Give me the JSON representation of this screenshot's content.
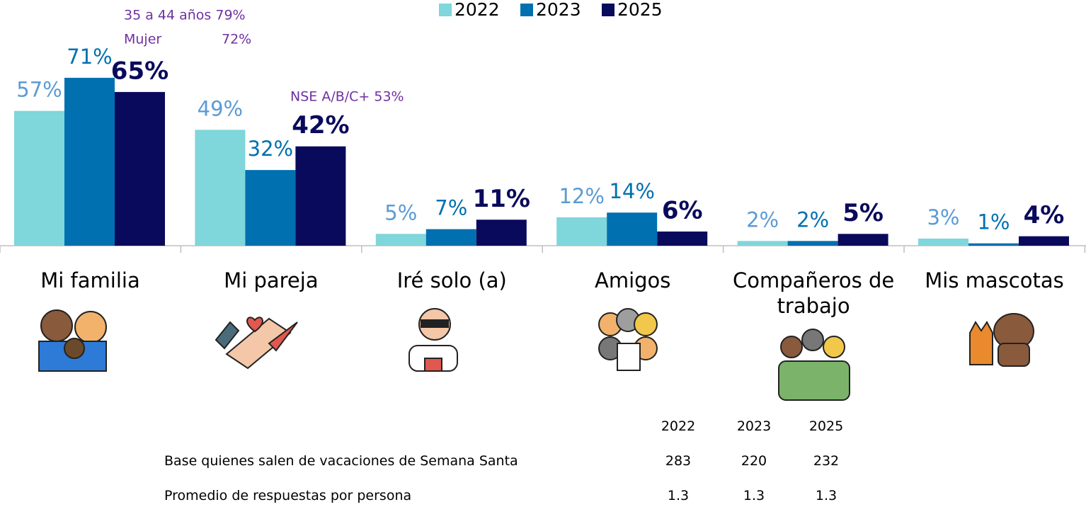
{
  "chart_data": {
    "type": "bar",
    "categories": [
      "Mi familia",
      "Mi pareja",
      "Iré solo (a)",
      "Amigos",
      "Compañeros de trabajo",
      "Mis mascotas"
    ],
    "series": [
      {
        "name": "2022",
        "color": "#7fd6db",
        "values": [
          57,
          49,
          5,
          12,
          2,
          3
        ],
        "value_labels": [
          "57%",
          "49%",
          "5%",
          "12%",
          "2%",
          "3%"
        ]
      },
      {
        "name": "2023",
        "color": "#0070b0",
        "values": [
          71,
          32,
          7,
          14,
          2,
          1
        ],
        "value_labels": [
          "71%",
          "32%",
          "7%",
          "14%",
          "2%",
          "1%"
        ]
      },
      {
        "name": "2025",
        "color": "#0a0a5c",
        "values": [
          65,
          42,
          11,
          6,
          5,
          4
        ],
        "value_labels": [
          "65%",
          "42%",
          "11%",
          "6%",
          "5%",
          "4%"
        ]
      }
    ],
    "annotations": [
      "35 a 44 años 79%",
      "Mujer",
      "72%",
      "NSE A/B/C+ 53%"
    ],
    "legend": "top"
  },
  "table": {
    "header": [
      "2022",
      "2023",
      "2025"
    ],
    "rows": [
      [
        "Base quienes salen de vacaciones de Semana Santa",
        283,
        220,
        232
      ],
      [
        "Promedio de respuestas por persona",
        1.3,
        1.3,
        1.3
      ]
    ]
  }
}
